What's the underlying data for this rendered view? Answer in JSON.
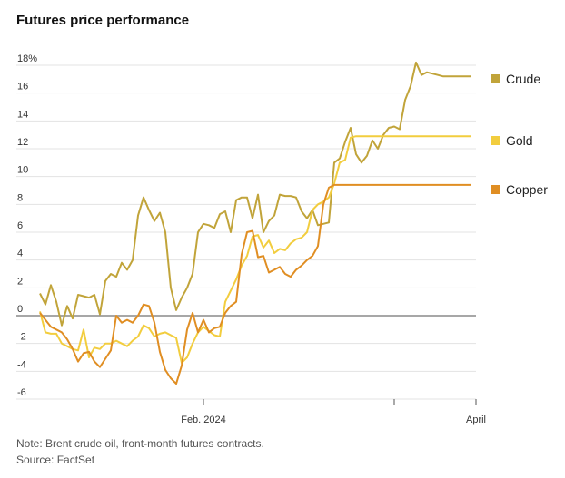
{
  "chart_data": {
    "type": "line",
    "title": "Futures price performance",
    "y_unit_suffix": "%",
    "ylim": [
      -6,
      18
    ],
    "yticks": [
      18,
      16,
      14,
      12,
      10,
      8,
      6,
      4,
      2,
      0,
      -2,
      -4,
      -6
    ],
    "ytick_labels": [
      "18%",
      "16",
      "14",
      "12",
      "10",
      "8",
      "6",
      "4",
      "2",
      "0",
      "-2",
      "-4",
      "-6"
    ],
    "xlim": [
      0,
      80
    ],
    "xticks": [
      {
        "pos": 30,
        "label": "Feb. 2024"
      },
      {
        "pos": 65,
        "label": ""
      },
      {
        "pos": 80,
        "label": "April"
      }
    ],
    "grid": true,
    "legend": "right",
    "series": [
      {
        "name": "Crude",
        "color": "#c1a43a",
        "x": [
          0,
          1,
          2,
          3,
          4,
          5,
          6,
          7,
          8,
          9,
          10,
          11,
          12,
          13,
          14,
          15,
          16,
          17,
          18,
          19,
          20,
          21,
          22,
          23,
          24,
          25,
          26,
          27,
          28,
          29,
          30,
          31,
          32,
          33,
          34,
          35,
          36,
          37,
          38,
          39,
          40,
          41,
          42,
          43,
          44,
          45,
          46,
          47,
          48,
          49,
          50,
          51,
          52,
          53,
          54,
          55,
          56,
          57,
          58,
          59,
          60,
          61,
          62,
          63,
          64,
          65,
          66,
          67,
          68,
          69,
          70,
          71,
          72,
          73,
          74,
          75,
          76,
          77,
          78,
          79
        ],
        "values": [
          1.6,
          0.8,
          2.2,
          1.0,
          -0.7,
          0.7,
          -0.2,
          1.5,
          1.4,
          1.3,
          1.5,
          0.1,
          2.5,
          3.0,
          2.8,
          3.8,
          3.3,
          4.0,
          7.2,
          8.5,
          7.6,
          6.8,
          7.4,
          6.0,
          2.0,
          0.4,
          1.3,
          2.0,
          3.0,
          6.0,
          6.6,
          6.5,
          6.3,
          7.3,
          7.5,
          6.0,
          8.3,
          8.5,
          8.5,
          7.0,
          8.7,
          6.0,
          6.8,
          7.2,
          8.7,
          8.6,
          8.6,
          8.5,
          7.5,
          7.0,
          7.6,
          6.5,
          6.6,
          6.7,
          11.0,
          11.3,
          12.5,
          13.5,
          11.6,
          11.0,
          11.5,
          12.6,
          12.0,
          13.0,
          13.5,
          13.6,
          13.4,
          15.5,
          16.5,
          18.2,
          17.3,
          17.5,
          17.4,
          17.3,
          17.2,
          17.2,
          17.2,
          17.2,
          17.2,
          17.2
        ]
      },
      {
        "name": "Gold",
        "color": "#f2cd3e",
        "x": [
          0,
          1,
          2,
          3,
          4,
          5,
          6,
          7,
          8,
          9,
          10,
          11,
          12,
          13,
          14,
          15,
          16,
          17,
          18,
          19,
          20,
          21,
          22,
          23,
          24,
          25,
          26,
          27,
          28,
          29,
          30,
          31,
          32,
          33,
          34,
          35,
          36,
          37,
          38,
          39,
          40,
          41,
          42,
          43,
          44,
          45,
          46,
          47,
          48,
          49,
          50,
          51,
          52,
          53,
          54,
          55,
          56,
          57,
          58,
          59,
          60,
          61,
          62,
          63,
          64,
          65,
          66,
          67,
          68,
          69,
          70,
          71,
          72,
          73,
          74,
          75,
          76,
          77,
          78,
          79
        ],
        "values": [
          0.3,
          -1.2,
          -1.3,
          -1.3,
          -2.0,
          -2.2,
          -2.4,
          -2.5,
          -1.0,
          -3.0,
          -2.3,
          -2.4,
          -2.0,
          -2.0,
          -1.8,
          -2.0,
          -2.2,
          -1.8,
          -1.5,
          -0.7,
          -0.9,
          -1.5,
          -1.3,
          -1.2,
          -1.4,
          -1.6,
          -3.4,
          -3.0,
          -2.0,
          -1.2,
          -0.8,
          -1.1,
          -1.4,
          -1.5,
          1.0,
          1.8,
          2.6,
          3.6,
          4.3,
          5.7,
          5.8,
          4.9,
          5.4,
          4.5,
          4.8,
          4.7,
          5.2,
          5.5,
          5.6,
          6.0,
          7.6,
          8.0,
          8.2,
          8.5,
          9.5,
          11.0,
          11.2,
          12.8,
          12.9,
          12.9,
          12.9,
          12.9,
          12.9,
          12.9,
          12.9,
          12.9,
          12.9,
          12.9,
          12.9,
          12.9,
          12.9,
          12.9,
          12.9,
          12.9,
          12.9,
          12.9,
          12.9,
          12.9,
          12.9,
          12.9
        ]
      },
      {
        "name": "Copper",
        "color": "#e08e23",
        "x": [
          0,
          1,
          2,
          3,
          4,
          5,
          6,
          7,
          8,
          9,
          10,
          11,
          12,
          13,
          14,
          15,
          16,
          17,
          18,
          19,
          20,
          21,
          22,
          23,
          24,
          25,
          26,
          27,
          28,
          29,
          30,
          31,
          32,
          33,
          34,
          35,
          36,
          37,
          38,
          39,
          40,
          41,
          42,
          43,
          44,
          45,
          46,
          47,
          48,
          49,
          50,
          51,
          52,
          53,
          54,
          55,
          56,
          57,
          58,
          59,
          60,
          61,
          62,
          63,
          64,
          65,
          66,
          67,
          68,
          69,
          70,
          71,
          72,
          73,
          74,
          75,
          76,
          77,
          78,
          79
        ],
        "values": [
          0.2,
          -0.3,
          -0.8,
          -1.0,
          -1.2,
          -1.7,
          -2.4,
          -3.3,
          -2.7,
          -2.6,
          -3.3,
          -3.7,
          -3.1,
          -2.5,
          0.0,
          -0.5,
          -0.3,
          -0.5,
          0.0,
          0.8,
          0.7,
          -0.5,
          -2.6,
          -3.9,
          -4.5,
          -4.9,
          -3.6,
          -1.0,
          0.2,
          -1.2,
          -0.3,
          -1.2,
          -0.9,
          -0.8,
          0.2,
          0.7,
          1.0,
          4.4,
          6.0,
          6.1,
          4.2,
          4.3,
          3.1,
          3.3,
          3.5,
          3.0,
          2.8,
          3.3,
          3.6,
          4.0,
          4.3,
          5.0,
          8.0,
          9.2,
          9.4,
          9.4,
          9.4,
          9.4,
          9.4,
          9.4,
          9.4,
          9.4,
          9.4,
          9.4,
          9.4,
          9.4,
          9.4,
          9.4,
          9.4,
          9.4,
          9.4,
          9.4,
          9.4,
          9.4,
          9.4,
          9.4,
          9.4,
          9.4,
          9.4,
          9.4
        ]
      }
    ]
  },
  "notes": {
    "line1": "Note: Brent crude oil, front-month futures contracts.",
    "line2": "Source: FactSet"
  }
}
